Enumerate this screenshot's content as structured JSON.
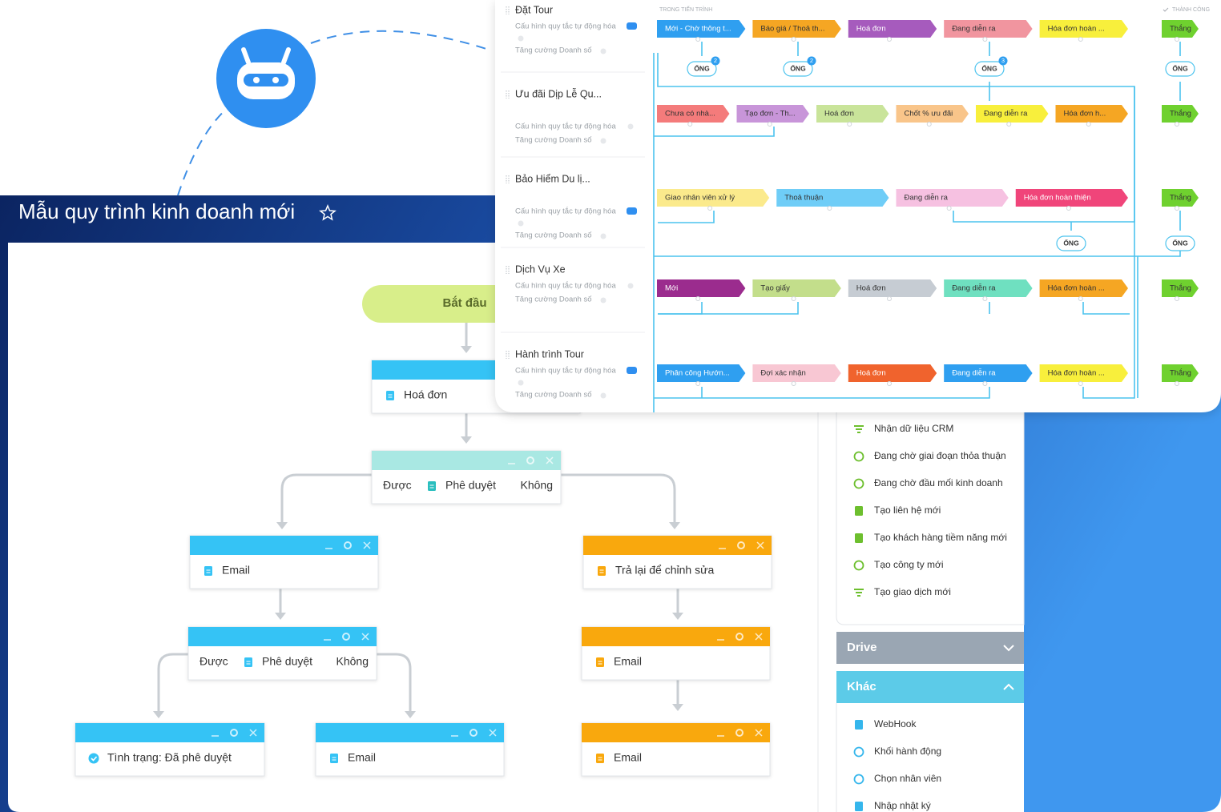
{
  "header": {
    "title": "Mẫu quy trình kinh doanh mới"
  },
  "flow": {
    "start": "Bắt đầu",
    "nodes": [
      "Hoá đơn",
      "Email",
      "Trả lại để chỉnh sửa",
      "Email",
      "Tình trạng: Đã phê duyệt",
      "Email",
      "Email"
    ],
    "decisions": [
      {
        "yes": "Được",
        "label": "Phê duyệt",
        "no": "Không"
      },
      {
        "yes": "Được",
        "label": "Phê duyệt",
        "no": "Không"
      }
    ]
  },
  "sidebar": {
    "items": [
      "Nhận dữ liệu CRM",
      "Đang chờ giai đoạn thỏa thuận",
      "Đang chờ đầu mối kinh doanh",
      "Tạo liên hệ mới",
      "Tạo khách hàng tiềm năng mới",
      "Tạo công ty mới",
      "Tạo giao dịch mới"
    ],
    "sections": [
      {
        "title": "Drive",
        "color": "#9aa6b3"
      },
      {
        "title": "Khác",
        "color": "#5ccbe8",
        "items": [
          "WebHook",
          "Khối hành động",
          "Chọn nhân viên",
          "Nhập nhật ký"
        ]
      }
    ]
  },
  "pipeline": {
    "in_progress": "TRONG TIẾN TRÌNH",
    "success": "THÀNH CÔNG",
    "rule_label": "Cấu hình quy tắc tự động hóa",
    "boost_label": "Tăng cường Doanh số",
    "pipe_label": "ỐNG",
    "badges": [
      2,
      2,
      3
    ],
    "won": {
      "label": "Thắng",
      "color": "#6fd12f"
    },
    "rows": [
      {
        "name": "Đặt Tour",
        "stages": [
          {
            "label": "Mới - Chờ thông t...",
            "color": "#2f9ff0"
          },
          {
            "label": "Báo giá / Thoả th...",
            "color": "#f5a623"
          },
          {
            "label": "Hoá đơn",
            "color": "#a65bbd"
          },
          {
            "label": "Đang diễn ra",
            "color": "#f1959f"
          },
          {
            "label": "Hóa đơn hoàn ...",
            "color": "#f8ef3c"
          }
        ]
      },
      {
        "name": "Ưu đãi Dịp Lễ Qu...",
        "stages": [
          {
            "label": "Chưa có nhà...",
            "color": "#f47b7b"
          },
          {
            "label": "Tạo đơn - Th...",
            "color": "#c895d9"
          },
          {
            "label": "Hoá đơn",
            "color": "#c9e49a"
          },
          {
            "label": "Chốt % ưu đãi",
            "color": "#f9c58a"
          },
          {
            "label": "Đang diễn ra",
            "color": "#f8ef3c"
          },
          {
            "label": "Hóa đơn h...",
            "color": "#f5a623"
          }
        ]
      },
      {
        "name": "Bảo Hiểm Du lị...",
        "stages": [
          {
            "label": "Giao nhân viên xử lý",
            "color": "#fbea8c"
          },
          {
            "label": "Thoả thuận",
            "color": "#6fcdf7"
          },
          {
            "label": "Đang diễn ra",
            "color": "#f6c1e1"
          },
          {
            "label": "Hóa đơn hoàn thiện",
            "color": "#f0457a"
          }
        ]
      },
      {
        "name": "Dịch Vụ Xe",
        "stages": [
          {
            "label": "Mới",
            "color": "#9b2c8e"
          },
          {
            "label": "Tạo giấy",
            "color": "#c3de8b"
          },
          {
            "label": "Hoá đơn",
            "color": "#c6ccd3"
          },
          {
            "label": "Đang diễn ra",
            "color": "#6fe0c0"
          },
          {
            "label": "Hóa đơn hoàn ...",
            "color": "#f5a623"
          }
        ]
      },
      {
        "name": "Hành trình Tour",
        "stages": [
          {
            "label": "Phân công Hướn...",
            "color": "#2f9ff0"
          },
          {
            "label": "Đợi xác nhận",
            "color": "#f8c7d3"
          },
          {
            "label": "Hoá đơn",
            "color": "#f0632d"
          },
          {
            "label": "Đang diễn ra",
            "color": "#2f9ff0"
          },
          {
            "label": "Hóa đơn hoàn ...",
            "color": "#f8ef3c"
          }
        ]
      }
    ]
  }
}
